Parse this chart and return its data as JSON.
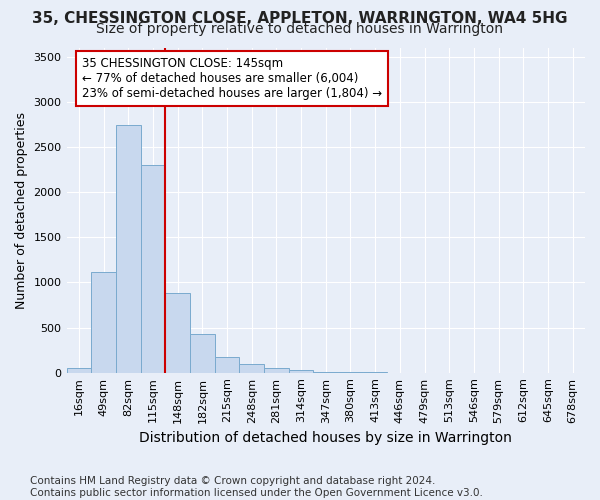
{
  "title1": "35, CHESSINGTON CLOSE, APPLETON, WARRINGTON, WA4 5HG",
  "title2": "Size of property relative to detached houses in Warrington",
  "xlabel": "Distribution of detached houses by size in Warrington",
  "ylabel": "Number of detached properties",
  "footnote": "Contains HM Land Registry data © Crown copyright and database right 2024.\nContains public sector information licensed under the Open Government Licence v3.0.",
  "categories": [
    "16sqm",
    "49sqm",
    "82sqm",
    "115sqm",
    "148sqm",
    "182sqm",
    "215sqm",
    "248sqm",
    "281sqm",
    "314sqm",
    "347sqm",
    "380sqm",
    "413sqm",
    "446sqm",
    "479sqm",
    "513sqm",
    "546sqm",
    "579sqm",
    "612sqm",
    "645sqm",
    "678sqm"
  ],
  "values": [
    50,
    1120,
    2740,
    2300,
    880,
    430,
    175,
    95,
    55,
    25,
    10,
    5,
    2,
    0,
    0,
    0,
    0,
    0,
    0,
    0,
    0
  ],
  "bar_color": "#c8d8ee",
  "bar_edge_color": "#7aaace",
  "annotation_text": "35 CHESSINGTON CLOSE: 145sqm\n← 77% of detached houses are smaller (6,004)\n23% of semi-detached houses are larger (1,804) →",
  "annotation_box_color": "#ffffff",
  "annotation_box_edge_color": "#cc0000",
  "vline_color": "#cc0000",
  "vline_bar_index": 4,
  "ylim": [
    0,
    3600
  ],
  "yticks": [
    0,
    500,
    1000,
    1500,
    2000,
    2500,
    3000,
    3500
  ],
  "bg_color": "#e8eef8",
  "plot_bg_color": "#e8eef8",
  "title1_fontsize": 11,
  "title2_fontsize": 10,
  "xlabel_fontsize": 10,
  "ylabel_fontsize": 9,
  "tick_fontsize": 8,
  "footnote_fontsize": 7.5
}
